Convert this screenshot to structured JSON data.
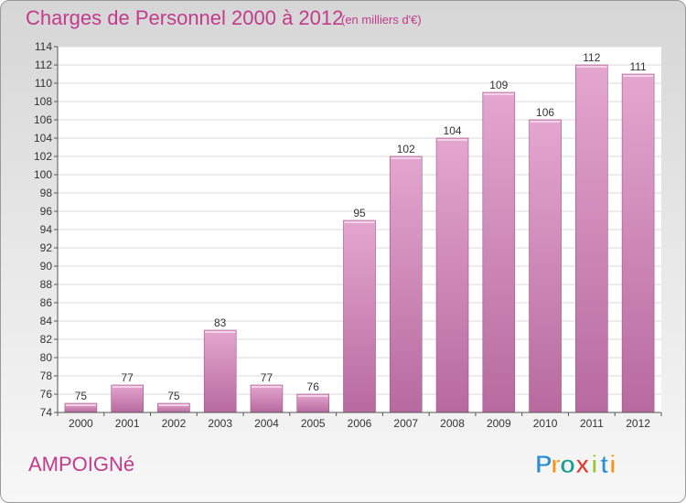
{
  "title": "Charges de Personnel 2000 à 2012",
  "unit_note": "(en milliers d'€)",
  "commune": "AMPOIGNé",
  "logo": {
    "text": "Proxiti",
    "letters": [
      "P",
      "r",
      "o",
      "x",
      "i",
      "t",
      "i"
    ],
    "colors": [
      "#2f8fd6",
      "#f7941d",
      "#1f9e8f",
      "#e23a2f",
      "#9bc53d",
      "#2f8fd6",
      "#f7941d"
    ]
  },
  "colors": {
    "title": "#c23b8c",
    "bar_top": "#e4a6cf",
    "bar_bottom": "#b76a9f",
    "bar_stroke": "#a05488"
  },
  "chart_data": {
    "type": "bar",
    "categories": [
      "2000",
      "2001",
      "2002",
      "2003",
      "2004",
      "2005",
      "2006",
      "2007",
      "2008",
      "2009",
      "2010",
      "2011",
      "2012"
    ],
    "values": [
      75,
      77,
      75,
      83,
      77,
      76,
      95,
      102,
      104,
      109,
      106,
      112,
      111
    ],
    "data_labels": [
      "75",
      "77",
      "75",
      "83",
      "77",
      "76",
      "95",
      "102",
      "104",
      "109",
      "106",
      "112",
      "111"
    ],
    "y_ticks": [
      74,
      76,
      78,
      80,
      82,
      84,
      86,
      88,
      90,
      92,
      94,
      96,
      98,
      100,
      102,
      104,
      106,
      108,
      110,
      112,
      114
    ],
    "ylim": [
      74,
      114
    ],
    "grid": true,
    "xlabel": "",
    "ylabel": ""
  }
}
